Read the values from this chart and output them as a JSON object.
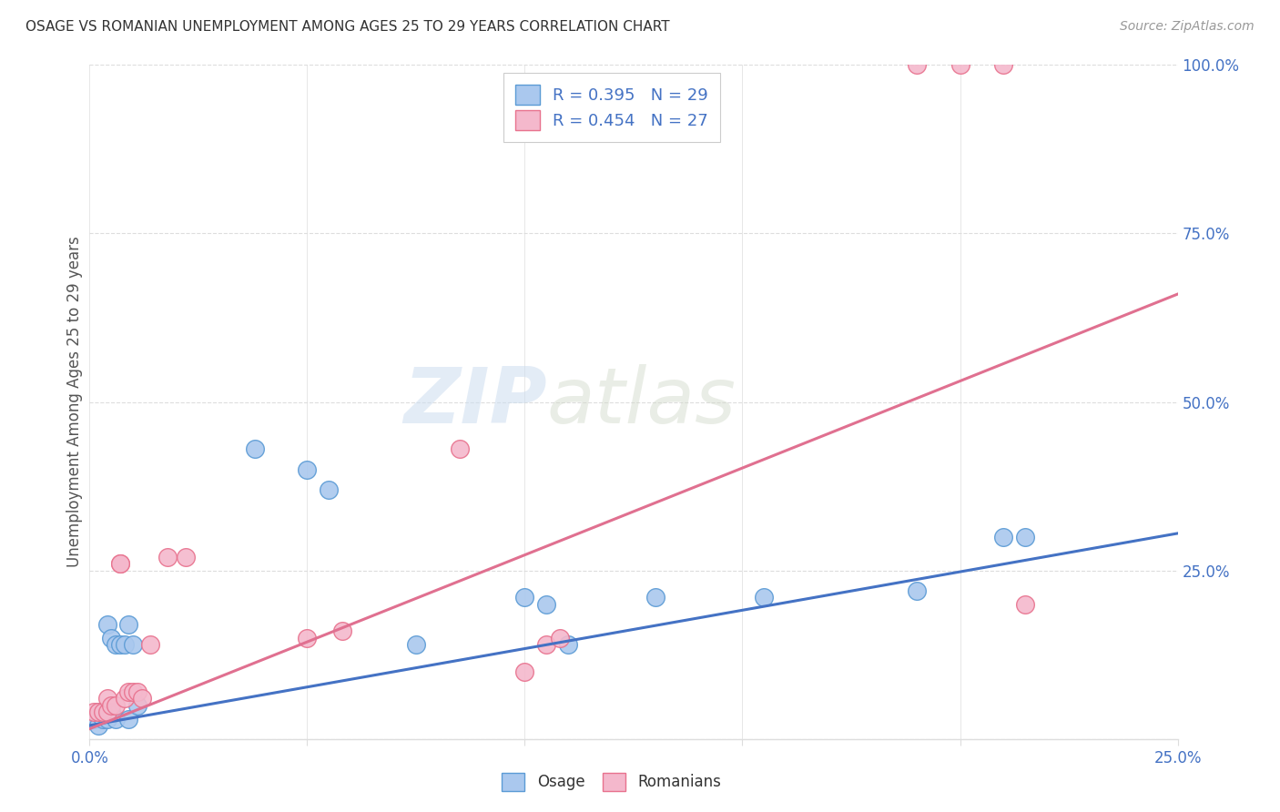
{
  "title": "OSAGE VS ROMANIAN UNEMPLOYMENT AMONG AGES 25 TO 29 YEARS CORRELATION CHART",
  "source": "Source: ZipAtlas.com",
  "ylabel": "Unemployment Among Ages 25 to 29 years",
  "xlim": [
    0.0,
    0.25
  ],
  "ylim": [
    0.0,
    1.0
  ],
  "xticks": [
    0.0,
    0.05,
    0.1,
    0.15,
    0.2,
    0.25
  ],
  "yticks": [
    0.0,
    0.25,
    0.5,
    0.75,
    1.0
  ],
  "xticklabels": [
    "0.0%",
    "",
    "",
    "",
    "",
    "25.0%"
  ],
  "yticklabels_right": [
    "",
    "25.0%",
    "50.0%",
    "75.0%",
    "100.0%"
  ],
  "background_color": "#ffffff",
  "watermark_zip": "ZIP",
  "watermark_atlas": "atlas",
  "osage_color": "#aac8ee",
  "romanian_color": "#f4b8cc",
  "osage_edge_color": "#5b9bd5",
  "romanian_edge_color": "#e8728e",
  "osage_line_color": "#4472c4",
  "romanian_line_color": "#e07090",
  "osage_R": 0.395,
  "osage_N": 29,
  "romanian_R": 0.454,
  "romanian_N": 27,
  "osage_line_x0": 0.0,
  "osage_line_y0": 0.02,
  "osage_line_x1": 0.25,
  "osage_line_y1": 0.305,
  "romanian_line_x0": 0.0,
  "romanian_line_y0": 0.015,
  "romanian_line_x1": 0.25,
  "romanian_line_y1": 0.66,
  "osage_x": [
    0.001,
    0.002,
    0.002,
    0.003,
    0.003,
    0.004,
    0.004,
    0.005,
    0.005,
    0.006,
    0.006,
    0.007,
    0.008,
    0.009,
    0.009,
    0.01,
    0.011,
    0.038,
    0.05,
    0.055,
    0.075,
    0.1,
    0.105,
    0.11,
    0.13,
    0.155,
    0.19,
    0.21,
    0.215
  ],
  "osage_y": [
    0.03,
    0.02,
    0.04,
    0.03,
    0.04,
    0.03,
    0.17,
    0.04,
    0.15,
    0.03,
    0.14,
    0.14,
    0.14,
    0.03,
    0.17,
    0.14,
    0.05,
    0.43,
    0.4,
    0.37,
    0.14,
    0.21,
    0.2,
    0.14,
    0.21,
    0.21,
    0.22,
    0.3,
    0.3
  ],
  "romanian_x": [
    0.001,
    0.002,
    0.003,
    0.004,
    0.004,
    0.005,
    0.006,
    0.007,
    0.007,
    0.008,
    0.009,
    0.01,
    0.011,
    0.012,
    0.014,
    0.018,
    0.022,
    0.05,
    0.058,
    0.085,
    0.1,
    0.105,
    0.108,
    0.19,
    0.2,
    0.21,
    0.215
  ],
  "romanian_y": [
    0.04,
    0.04,
    0.04,
    0.04,
    0.06,
    0.05,
    0.05,
    0.26,
    0.26,
    0.06,
    0.07,
    0.07,
    0.07,
    0.06,
    0.14,
    0.27,
    0.27,
    0.15,
    0.16,
    0.43,
    0.1,
    0.14,
    0.15,
    1.0,
    1.0,
    1.0,
    0.2
  ],
  "legend_osage_label": "Osage",
  "legend_romanian_label": "Romanians",
  "tick_color": "#4472c4",
  "tick_fontsize": 12,
  "grid_color": "#dddddd",
  "title_fontsize": 11,
  "source_fontsize": 10
}
